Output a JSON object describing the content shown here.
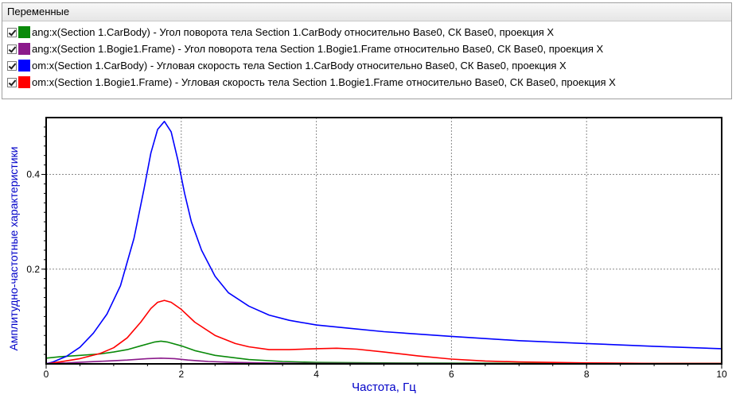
{
  "panel": {
    "header": "Переменные",
    "items": [
      {
        "label": "ang:x(Section 1.CarBody) - Угол поворота тела Section 1.CarBody относительно Base0, СК Base0, проекция X",
        "color": "#0a8a0a",
        "checked": true
      },
      {
        "label": "ang:x(Section 1.Bogie1.Frame) - Угол поворота тела Section 1.Bogie1.Frame относительно Base0, СК Base0, проекция X",
        "color": "#8b1a8b",
        "checked": true
      },
      {
        "label": "om:x(Section 1.CarBody) - Угловая скорость тела Section 1.CarBody относительно Base0, СК Base0, проекция X",
        "color": "#0000ff",
        "checked": true
      },
      {
        "label": "om:x(Section 1.Bogie1.Frame) - Угловая скорость тела Section 1.Bogie1.Frame относительно Base0, СК Base0, проекция X",
        "color": "#ff0000",
        "checked": true
      }
    ]
  },
  "chart_data": {
    "type": "line",
    "xlabel": "Частота, Гц",
    "ylabel": "Амплитудно-частотные характеристики",
    "xlim": [
      0,
      10
    ],
    "ylim": [
      0,
      0.52
    ],
    "xticks": [
      0,
      2,
      4,
      6,
      8,
      10
    ],
    "yticks": [
      0.2,
      0.4
    ],
    "grid": true,
    "legend": "none",
    "axis_label_color": "#0000c8",
    "series": [
      {
        "name": "ang:x(Section 1.CarBody)",
        "color": "#0a8a0a",
        "x": [
          0,
          0.2,
          0.5,
          0.8,
          1.0,
          1.2,
          1.4,
          1.6,
          1.7,
          1.8,
          2.0,
          2.2,
          2.5,
          3.0,
          3.5,
          4.0,
          5.0,
          6.0,
          7.0,
          8.0,
          9.0,
          10.0
        ],
        "y": [
          0.012,
          0.015,
          0.018,
          0.021,
          0.025,
          0.03,
          0.038,
          0.046,
          0.048,
          0.046,
          0.038,
          0.028,
          0.018,
          0.009,
          0.005,
          0.003,
          0.002,
          0.0015,
          0.001,
          0.001,
          0.001,
          0.001
        ]
      },
      {
        "name": "ang:x(Section 1.Bogie1.Frame)",
        "color": "#8b1a8b",
        "x": [
          0,
          0.3,
          0.6,
          0.9,
          1.2,
          1.5,
          1.7,
          1.9,
          2.1,
          2.4,
          2.8,
          3.2,
          4.0,
          5.0,
          6.0,
          8.0,
          10.0
        ],
        "y": [
          0.001,
          0.002,
          0.004,
          0.006,
          0.008,
          0.011,
          0.012,
          0.011,
          0.008,
          0.005,
          0.003,
          0.002,
          0.001,
          0.0008,
          0.0005,
          0.0003,
          0.0002
        ]
      },
      {
        "name": "om:x(Section 1.CarBody)",
        "color": "#0000ff",
        "x": [
          0,
          0.1,
          0.3,
          0.5,
          0.7,
          0.9,
          1.1,
          1.3,
          1.45,
          1.55,
          1.65,
          1.75,
          1.85,
          1.95,
          2.05,
          2.15,
          2.3,
          2.5,
          2.7,
          3.0,
          3.3,
          3.6,
          4.0,
          4.5,
          5.0,
          6.0,
          7.0,
          8.0,
          9.0,
          10.0
        ],
        "y": [
          0.0,
          0.004,
          0.016,
          0.035,
          0.065,
          0.105,
          0.165,
          0.265,
          0.37,
          0.445,
          0.495,
          0.512,
          0.49,
          0.43,
          0.36,
          0.3,
          0.24,
          0.185,
          0.15,
          0.122,
          0.103,
          0.092,
          0.082,
          0.075,
          0.068,
          0.058,
          0.049,
          0.043,
          0.037,
          0.032
        ]
      },
      {
        "name": "om:x(Section 1.Bogie1.Frame)",
        "color": "#ff0000",
        "x": [
          0,
          0.2,
          0.5,
          0.8,
          1.0,
          1.2,
          1.4,
          1.55,
          1.65,
          1.75,
          1.85,
          2.0,
          2.2,
          2.5,
          2.8,
          3.0,
          3.3,
          3.6,
          4.0,
          4.3,
          4.6,
          5.0,
          5.5,
          6.0,
          6.5,
          7.0,
          8.0,
          9.0,
          10.0
        ],
        "y": [
          0.0,
          0.004,
          0.011,
          0.022,
          0.034,
          0.055,
          0.088,
          0.117,
          0.13,
          0.134,
          0.13,
          0.115,
          0.088,
          0.06,
          0.043,
          0.036,
          0.03,
          0.03,
          0.032,
          0.033,
          0.031,
          0.025,
          0.017,
          0.01,
          0.006,
          0.004,
          0.002,
          0.001,
          0.001
        ]
      }
    ]
  }
}
